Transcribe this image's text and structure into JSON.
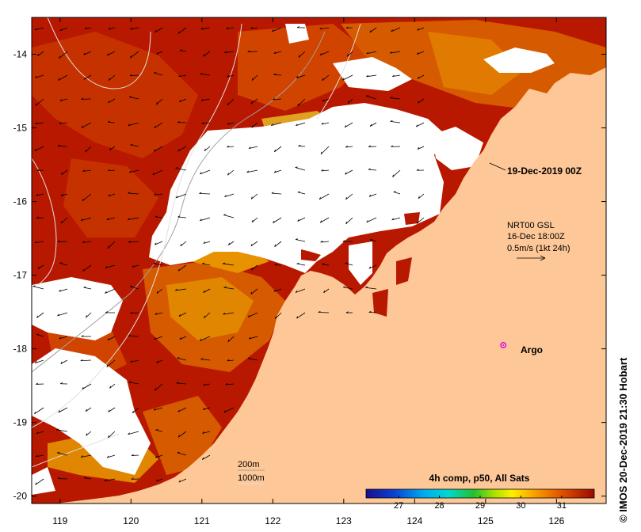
{
  "map": {
    "x_ticks": [
      "119",
      "120",
      "121",
      "122",
      "123",
      "124",
      "125",
      "126"
    ],
    "y_ticks": [
      "-14",
      "-15",
      "-16",
      "-17",
      "-18",
      "-19",
      "-20"
    ],
    "x_range": [
      118.6,
      126.7
    ],
    "y_range": [
      -20.1,
      -13.5
    ],
    "date_label": "19-Dec-2019 00Z",
    "current_legend": {
      "line1": "NRT00 GSL",
      "line2": "16-Dec 18:00Z",
      "line3": "0.5m/s (1kt 24h)"
    },
    "argo_label": "Argo",
    "argo_position": {
      "lon": 125.25,
      "lat": -17.95
    },
    "contour_labels": {
      "depth1": "200m",
      "depth2": "1000m"
    },
    "colorbar": {
      "title": "4h comp, p50, All Sats",
      "ticks": [
        "27",
        "28",
        "29",
        "30",
        "31"
      ],
      "range": [
        26.2,
        31.8
      ]
    },
    "credit": "© IMOS 20-Dec-2019 21:30 Hobart"
  },
  "colors": {
    "land": "#FDC797",
    "sst_hot": "#B81800",
    "sst_warm": "#D65A00",
    "sst_mid": "#E89200",
    "cloud": "#FFFFFF",
    "argo": "#E000E0"
  }
}
